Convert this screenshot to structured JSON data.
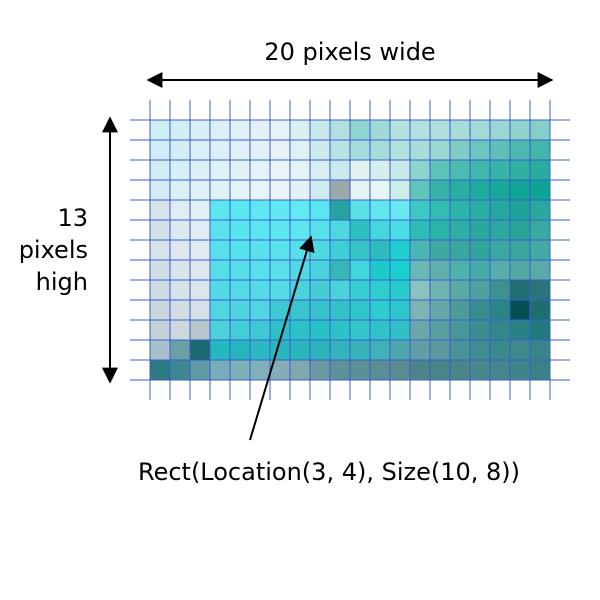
{
  "labels": {
    "width": "20 pixels wide",
    "height_lines": [
      "13",
      "pixels",
      "high"
    ],
    "rect": "Rect(Location(3, 4), Size(10, 8))"
  },
  "grid": {
    "cols": 20,
    "rows": 13,
    "line_color": "#3a5fcd",
    "cells": [
      [
        "#cdeef5",
        "#d4eef6",
        "#d8eff5",
        "#ddf0f5",
        "#e2f1f7",
        "#e4f2f7",
        "#e5f3f8",
        "#dcefef",
        "#c8e8ea",
        "#b2e0de",
        "#8fd4d0",
        "#a0d9d5",
        "#b5e2df",
        "#b2e0de",
        "#aedfdc",
        "#a8dcd8",
        "#a3dad5",
        "#9ad7d1",
        "#90d2cc",
        "#86cfc8"
      ],
      [
        "#d0ecf4",
        "#d5eef5",
        "#daeff6",
        "#deeff7",
        "#e0f0f6",
        "#e3f1f7",
        "#e7f3f8",
        "#e0f1f2",
        "#cdeaec",
        "#b8e3e1",
        "#a3dcd8",
        "#a7ddd8",
        "#b2e0dc",
        "#a9ddd8",
        "#9bd7d1",
        "#7fcdc5",
        "#6dc6bd",
        "#5ec0b6",
        "#4db9ae",
        "#44b5a9"
      ],
      [
        "#d2ecf4",
        "#d7eff6",
        "#dcf0f6",
        "#e0f1f7",
        "#e3f2f7",
        "#e6f3f8",
        "#e9f5f8",
        "#e5f3f5",
        "#d8eeef",
        "#cbe9ea",
        "#e3f2f1",
        "#d7efec",
        "#c8e9e5",
        "#8dd4cc",
        "#5cc3b9",
        "#4bbcb0",
        "#3fb7aa",
        "#38b4a6",
        "#2eb0a2",
        "#27ac9e"
      ],
      [
        "#d4ebf3",
        "#dcf0f6",
        "#dff1f6",
        "#e1f2f7",
        "#e4f3f7",
        "#e7f4f8",
        "#e9f5f8",
        "#e3f2f4",
        "#d0ebed",
        "#9aa8a8",
        "#e4f4f5",
        "#e7f6f6",
        "#cceee9",
        "#61c5ba",
        "#36b3a6",
        "#28ae9f",
        "#1fab9b",
        "#18a897",
        "#10a594",
        "#0ea493"
      ],
      [
        "#d7e3ea",
        "#e0eef4",
        "#e2f1f6",
        "#5ee6f0",
        "#5ce7f0",
        "#5ee8f1",
        "#60e9f2",
        "#62eaf2",
        "#5ae6ee",
        "#26a39e",
        "#5ae1e6",
        "#64e6ed",
        "#6ae8ef",
        "#3fc8c2",
        "#33bdb2",
        "#2bb4a8",
        "#2aaea2",
        "#22a99c",
        "#1ea497",
        "#29a89c"
      ],
      [
        "#d3e0e8",
        "#dce9ef",
        "#e0edf2",
        "#5ae3ed",
        "#5ae4ee",
        "#5be5ef",
        "#5de6ef",
        "#5de6ef",
        "#56e0e8",
        "#4cd8dc",
        "#2fbfc0",
        "#46d6dc",
        "#4adce2",
        "#2cbcb4",
        "#2ab4a8",
        "#2eaea4",
        "#2aa89e",
        "#2ca89e",
        "#28a499",
        "#3aa9a0"
      ],
      [
        "#d8e3e9",
        "#dde7ec",
        "#e0ebef",
        "#57e0ea",
        "#57e1eb",
        "#59e2ec",
        "#5ae3ec",
        "#56dfe8",
        "#4ed8e0",
        "#3ecfd5",
        "#37c4c7",
        "#2ebbbc",
        "#21cdce",
        "#4ab7b3",
        "#3fa8a0",
        "#3ba69e",
        "#33a49c",
        "#3aa8a0",
        "#3aa69f",
        "#43a9a2"
      ],
      [
        "#d0dde5",
        "#d8e4ea",
        "#dde8ee",
        "#55dde8",
        "#55dee9",
        "#57dfea",
        "#58dfea",
        "#52dae4",
        "#49d3dc",
        "#36b7b5",
        "#42d6dc",
        "#1ccbc9",
        "#1ad0cd",
        "#6ab8b4",
        "#5fb0aa",
        "#4fb2aa",
        "#46aba4",
        "#55aeaa",
        "#54a8a4",
        "#5aaaa8"
      ],
      [
        "#cddae2",
        "#d6e2e8",
        "#dbe6ec",
        "#53d9e4",
        "#53dae5",
        "#54dbe6",
        "#55dce6",
        "#4cd2dc",
        "#44cbd3",
        "#4ad4da",
        "#38ced1",
        "#31cdcf",
        "#26cbca",
        "#8ac2c0",
        "#6fb4b0",
        "#59a9a5",
        "#4ea29e",
        "#3c938e",
        "#1f6f73",
        "#2a7478"
      ],
      [
        "#cad6de",
        "#d2dee4",
        "#d6e1e7",
        "#50d6e1",
        "#4fd5e0",
        "#50d6e0",
        "#3ec9d1",
        "#3ac5cc",
        "#38c2ca",
        "#33c2c6",
        "#30c5c8",
        "#2dcccd",
        "#2ec7c8",
        "#7eb5b4",
        "#66a8a6",
        "#4d9a97",
        "#378d8b",
        "#2b8580",
        "#064f54",
        "#1e6e6e"
      ],
      [
        "#c6d2da",
        "#ccd8de",
        "#b8c6cc",
        "#4dd1db",
        "#45cdd7",
        "#3ecad3",
        "#2dc0c7",
        "#2ac2c8",
        "#26c2c6",
        "#2cc3c7",
        "#36c5c9",
        "#30c2c6",
        "#30c0c4",
        "#6aa7a8",
        "#5a9e9f",
        "#4a9598",
        "#3c8d8e",
        "#358889",
        "#2a8184",
        "#237a7c"
      ],
      [
        "#a8c0cc",
        "#6a9fa6",
        "#1a6a72",
        "#25b8c1",
        "#25b5be",
        "#2bb8c0",
        "#2ab6bd",
        "#29b7bd",
        "#2db4bb",
        "#33b3ba",
        "#36b2b8",
        "#41b1b7",
        "#4fa7ab",
        "#609fa4",
        "#5c999e",
        "#4b9198",
        "#3f8d90",
        "#3a8a8c",
        "#40898c",
        "#39868a"
      ],
      [
        "#2b7983",
        "#3e8791",
        "#5f9ba4",
        "#78aeb9",
        "#7eb0b8",
        "#82b0b8",
        "#84aeb5",
        "#80a8ae",
        "#6d9aa0",
        "#5f9298",
        "#5a9096",
        "#5a8e94",
        "#5a8c92",
        "#4d8488",
        "#4a8488",
        "#4c8588",
        "#48878a",
        "#44868a",
        "#3f8487",
        "#3a8285"
      ]
    ]
  }
}
